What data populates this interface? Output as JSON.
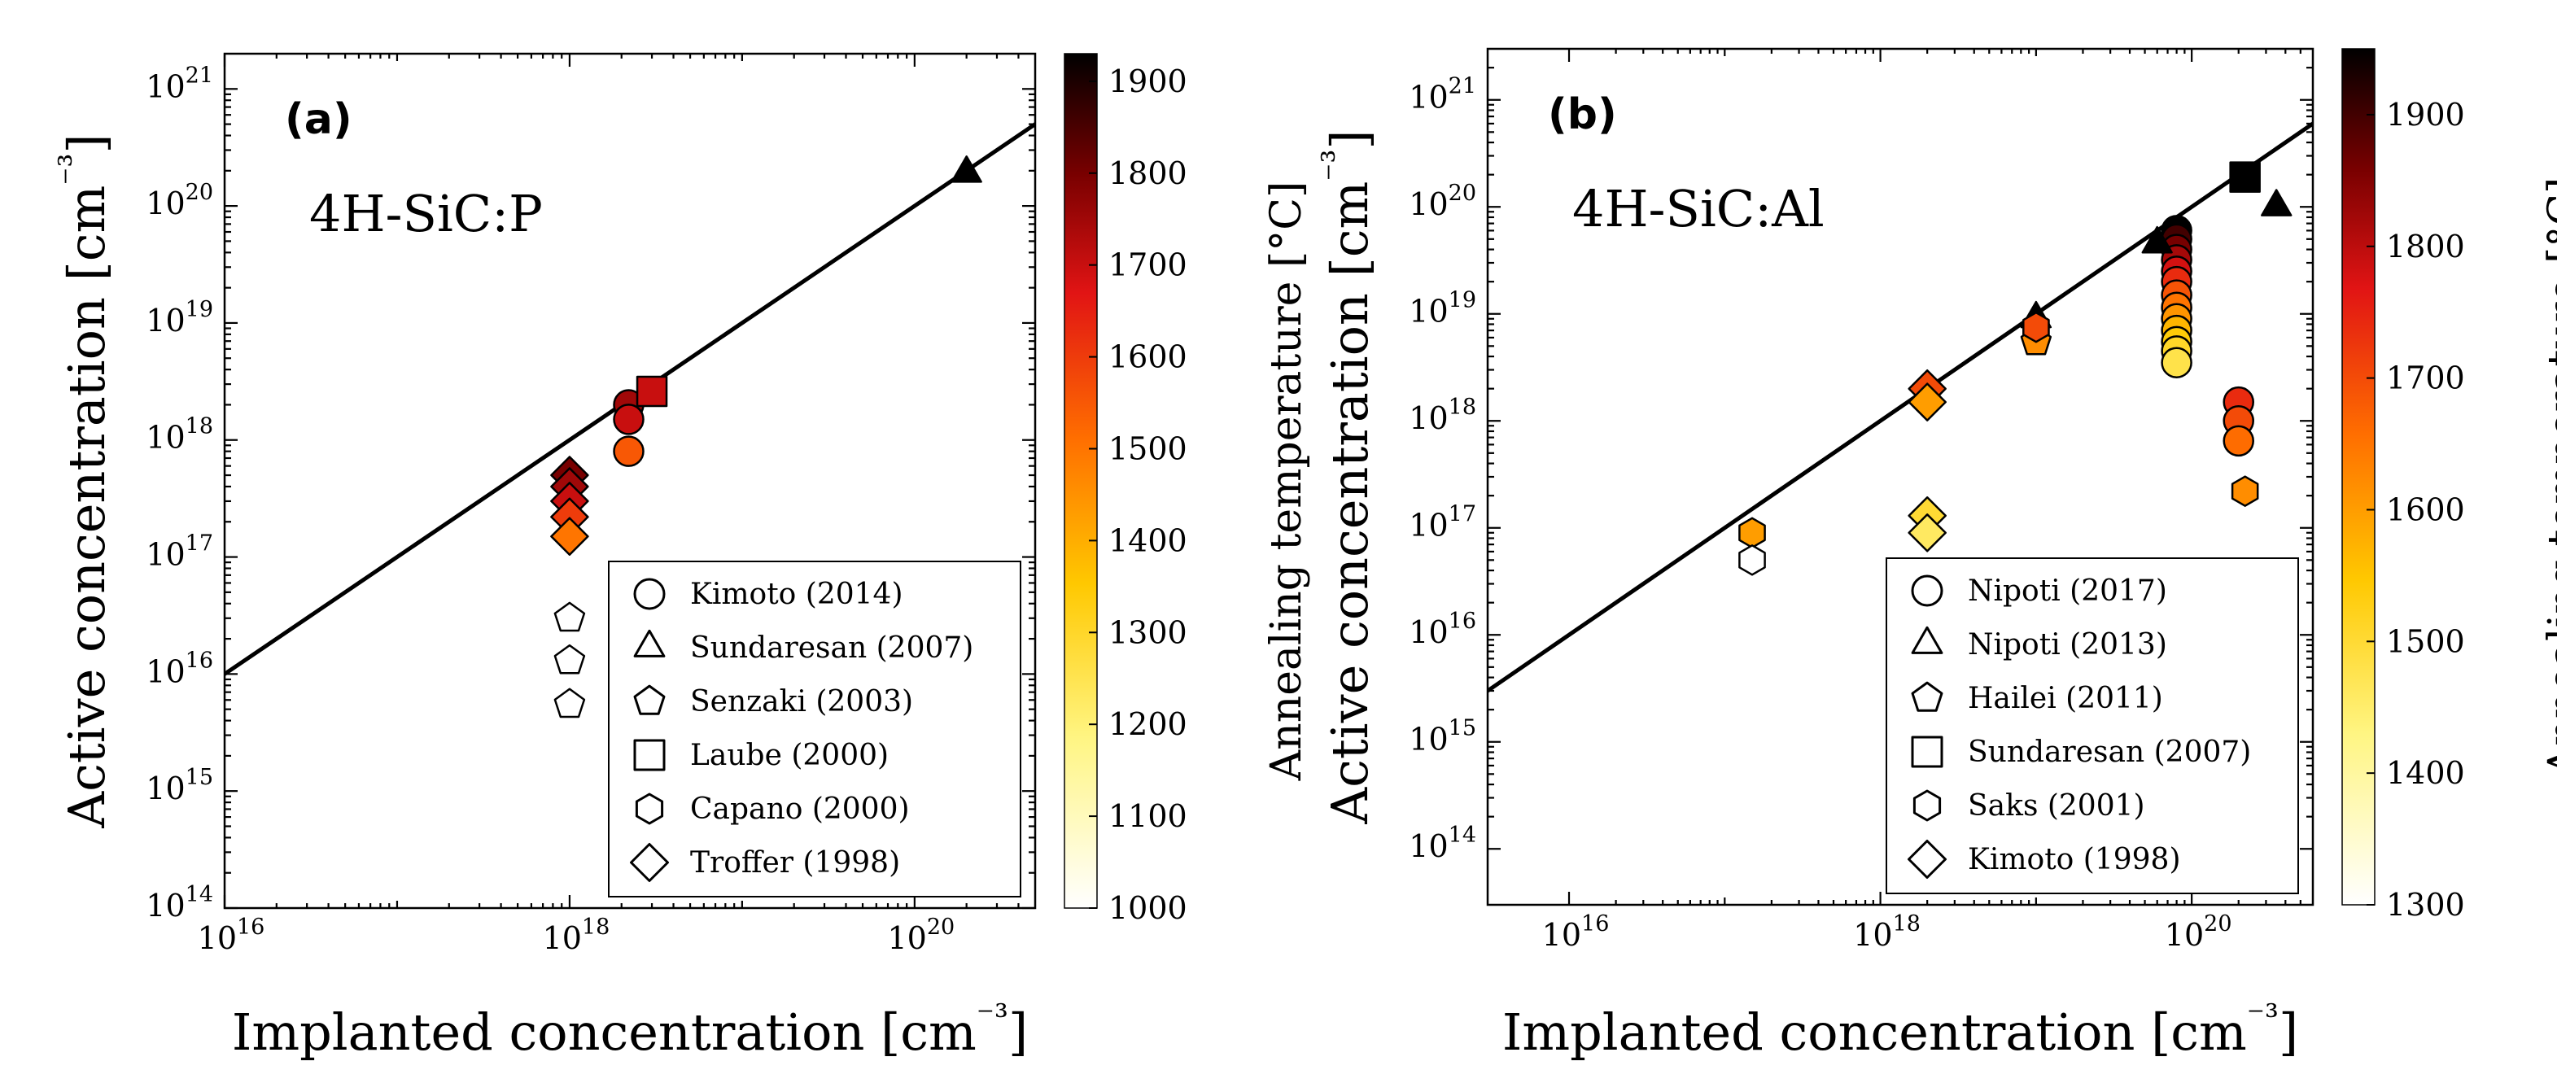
{
  "chart_data": [
    {
      "type": "scatter",
      "panel_label": "(a)",
      "annotation": "4H-SiC:P",
      "xlabel": "Implanted concentration [cm⁻³]",
      "ylabel": "Active concentration [cm⁻³]",
      "x_scale": "log",
      "y_scale": "log",
      "xlim": [
        1e+16,
        5e+20
      ],
      "ylim": [
        100000000000000.0,
        2e+21
      ],
      "x_tick_labels": [
        "10¹⁶",
        "10¹⁸",
        "10²⁰"
      ],
      "y_tick_labels": [
        "10¹⁴",
        "10¹⁵",
        "10¹⁶",
        "10¹⁷",
        "10¹⁸",
        "10¹⁹",
        "10²⁰",
        "10²¹"
      ],
      "reference_line": "y = x",
      "colorbar": {
        "label": "Annealing temperature [°C]",
        "range": [
          1000,
          1930
        ],
        "tick_labels": [
          "1000",
          "1100",
          "1200",
          "1300",
          "1400",
          "1500",
          "1600",
          "1700",
          "1800",
          "1900"
        ],
        "colormap": "hot_r"
      },
      "legend_position": "lower-right",
      "series": [
        {
          "name": "Kimoto (2014)",
          "marker": "circle",
          "points": [
            {
              "x": 2.2e+18,
              "y": 2e+18,
              "T": 1750
            },
            {
              "x": 2.2e+18,
              "y": 1.5e+18,
              "T": 1700
            },
            {
              "x": 2.2e+18,
              "y": 8e+17,
              "T": 1550
            }
          ]
        },
        {
          "name": "Sundaresan (2007)",
          "marker": "triangle",
          "points": [
            {
              "x": 2e+20,
              "y": 1.9e+20,
              "T": 1930
            }
          ]
        },
        {
          "name": "Senzaki (2003)",
          "marker": "pentagon",
          "points": [
            {
              "x": 1e+18,
              "y": 3e+16,
              "T": null
            },
            {
              "x": 1e+18,
              "y": 1.3e+16,
              "T": null
            },
            {
              "x": 1e+18,
              "y": 5500000000000000.0,
              "T": null
            }
          ]
        },
        {
          "name": "Laube (2000)",
          "marker": "square",
          "points": [
            {
              "x": 3e+18,
              "y": 2.6e+18,
              "T": 1700
            }
          ]
        },
        {
          "name": "Capano (2000)",
          "marker": "hexagon",
          "points": []
        },
        {
          "name": "Troffer (1998)",
          "marker": "diamond",
          "points": [
            {
              "x": 1e+18,
              "y": 5e+17,
              "T": 1800
            },
            {
              "x": 1e+18,
              "y": 4e+17,
              "T": 1750
            },
            {
              "x": 1e+18,
              "y": 3e+17,
              "T": 1700
            },
            {
              "x": 1e+18,
              "y": 2.2e+17,
              "T": 1600
            },
            {
              "x": 1e+18,
              "y": 1.5e+17,
              "T": 1500
            }
          ]
        }
      ]
    },
    {
      "type": "scatter",
      "panel_label": "(b)",
      "annotation": "4H-SiC:Al",
      "xlabel": "Implanted concentration [cm⁻³]",
      "ylabel": "Active concentration [cm⁻³]",
      "x_scale": "log",
      "y_scale": "log",
      "xlim": [
        3000000000000000.0,
        6e+20
      ],
      "ylim": [
        30000000000000.0,
        3e+21
      ],
      "x_tick_labels": [
        "10¹⁶",
        "10¹⁸",
        "10²⁰"
      ],
      "y_tick_labels": [
        "10¹⁴",
        "10¹⁵",
        "10¹⁶",
        "10¹⁷",
        "10¹⁸",
        "10¹⁹",
        "10²⁰",
        "10²¹"
      ],
      "reference_line": "y = x",
      "colorbar": {
        "label": "Annealing temperature [°C]",
        "range": [
          1300,
          1950
        ],
        "tick_labels": [
          "1300",
          "1400",
          "1500",
          "1600",
          "1700",
          "1800",
          "1900"
        ],
        "colormap": "hot_r"
      },
      "legend_position": "lower-right",
      "series": [
        {
          "name": "Nipoti (2017)",
          "marker": "circle",
          "points": [
            {
              "x": 8e+19,
              "y": 6e+19,
              "T": 1950
            },
            {
              "x": 8e+19,
              "y": 5e+19,
              "T": 1900
            },
            {
              "x": 8e+19,
              "y": 4e+19,
              "T": 1860
            },
            {
              "x": 8e+19,
              "y": 3.2e+19,
              "T": 1820
            },
            {
              "x": 8e+19,
              "y": 2.5e+19,
              "T": 1780
            },
            {
              "x": 8e+19,
              "y": 2e+19,
              "T": 1740
            },
            {
              "x": 8e+19,
              "y": 1.5e+19,
              "T": 1690
            },
            {
              "x": 8e+19,
              "y": 1.15e+19,
              "T": 1650
            },
            {
              "x": 8e+19,
              "y": 9e+18,
              "T": 1610
            },
            {
              "x": 8e+19,
              "y": 7e+18,
              "T": 1570
            },
            {
              "x": 8e+19,
              "y": 5.5e+18,
              "T": 1540
            },
            {
              "x": 8e+19,
              "y": 4.5e+18,
              "T": 1510
            },
            {
              "x": 8e+19,
              "y": 3.5e+18,
              "T": 1480
            },
            {
              "x": 2e+20,
              "y": 1.5e+18,
              "T": 1740
            },
            {
              "x": 2e+20,
              "y": 1e+18,
              "T": 1700
            },
            {
              "x": 2e+20,
              "y": 6.5e+17,
              "T": 1660
            }
          ]
        },
        {
          "name": "Nipoti (2013)",
          "marker": "triangle",
          "points": [
            {
              "x": 1e+19,
              "y": 9e+18,
              "T": 1950
            },
            {
              "x": 6e+19,
              "y": 4.5e+19,
              "T": 1950
            },
            {
              "x": 3.5e+20,
              "y": 1e+20,
              "T": 1950
            }
          ]
        },
        {
          "name": "Hailei (2011)",
          "marker": "pentagon",
          "points": [
            {
              "x": 1e+19,
              "y": 5.5e+18,
              "T": 1620
            }
          ]
        },
        {
          "name": "Sundaresan (2007)",
          "marker": "square",
          "points": [
            {
              "x": 2.2e+20,
              "y": 1.9e+20,
              "T": 1950
            }
          ]
        },
        {
          "name": "Saks (2001)",
          "marker": "hexagon",
          "points": [
            {
              "x": 1.5e+17,
              "y": 9e+16,
              "T": 1600
            },
            {
              "x": 1.5e+17,
              "y": 5e+16,
              "T": null
            },
            {
              "x": 1e+19,
              "y": 7.5e+18,
              "T": 1700
            },
            {
              "x": 2.2e+20,
              "y": 2.2e+17,
              "T": 1620
            }
          ]
        },
        {
          "name": "Kimoto (1998)",
          "marker": "diamond",
          "points": [
            {
              "x": 2e+18,
              "y": 2e+18,
              "T": 1700
            },
            {
              "x": 2e+18,
              "y": 1.5e+18,
              "T": 1600
            },
            {
              "x": 2e+18,
              "y": 1.3e+17,
              "T": 1500
            },
            {
              "x": 2e+18,
              "y": 9e+16,
              "T": 1460
            }
          ]
        }
      ]
    }
  ]
}
